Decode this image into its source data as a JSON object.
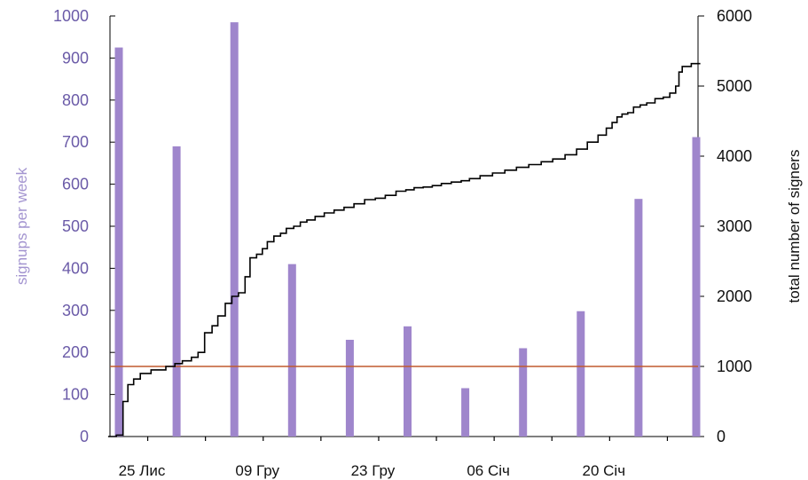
{
  "chart_data": {
    "type": "bar",
    "title": "",
    "xlabel": "",
    "ylabel": "signups per week",
    "ylabel_right": "total number of signers",
    "ylim": [
      0,
      1000
    ],
    "ylim_right": [
      0,
      6000
    ],
    "y_ticks": [
      "0",
      "100",
      "200",
      "300",
      "400",
      "500",
      "600",
      "700",
      "800",
      "900",
      "1000"
    ],
    "y_ticks_right": [
      "0",
      "1000",
      "2000",
      "3000",
      "4000",
      "5000",
      "6000"
    ],
    "x_tick_labels": [
      "25 Лис",
      "09 Гру",
      "23 Гру",
      "06 Січ",
      "20 Січ"
    ],
    "x_range_days": [
      0,
      70
    ],
    "x_tick_label_days": [
      0,
      14,
      28,
      42,
      56
    ],
    "x_minor_tick_days": [
      3.5,
      10.5,
      17.5,
      24.5,
      31.5,
      38.5,
      45.5,
      52.5,
      59.5,
      66.5
    ],
    "colors": {
      "bars": "#9f86cc",
      "cumulative": "#000000",
      "reference": "#c05a2e",
      "left_axis": "#6b5ba8"
    },
    "bars": [
      {
        "day": 0,
        "value": 925
      },
      {
        "day": 7,
        "value": 690
      },
      {
        "day": 14,
        "value": 985
      },
      {
        "day": 21,
        "value": 410
      },
      {
        "day": 28,
        "value": 230
      },
      {
        "day": 35,
        "value": 262
      },
      {
        "day": 42,
        "value": 115
      },
      {
        "day": 49,
        "value": 210
      },
      {
        "day": 56,
        "value": 298
      },
      {
        "day": 63,
        "value": 565
      },
      {
        "day": 70,
        "value": 712
      }
    ],
    "reference_line": {
      "value": 1000,
      "axis": "right"
    },
    "cumulative": {
      "axis": "right",
      "days": [
        -1.3,
        -0.3,
        0.5,
        1.1,
        1.8,
        2.6,
        3.9,
        5.7,
        6.8,
        7.7,
        8.8,
        9.6,
        10.4,
        11.3,
        12.0,
        12.9,
        13.7,
        14.5,
        15.3,
        15.9,
        16.7,
        17.4,
        18.0,
        18.8,
        19.6,
        20.3,
        21.2,
        22.0,
        22.8,
        23.8,
        24.9,
        26.1,
        27.3,
        28.5,
        29.8,
        31.1,
        32.3,
        33.6,
        34.8,
        35.8,
        36.9,
        38.0,
        39.1,
        40.3,
        41.5,
        42.5,
        43.8,
        45.3,
        46.8,
        48.2,
        49.7,
        51.2,
        52.6,
        54.1,
        55.5,
        56.8,
        58.1,
        59.1,
        59.8,
        60.4,
        61.0,
        61.7,
        62.4,
        63.2,
        64.0,
        65.0,
        66.0,
        66.8,
        67.5,
        67.9,
        68.3,
        69.4,
        70.5
      ],
      "values": [
        0,
        20,
        500,
        740,
        820,
        900,
        950,
        1000,
        1040,
        1080,
        1130,
        1200,
        1480,
        1580,
        1720,
        1900,
        2000,
        2050,
        2280,
        2550,
        2600,
        2680,
        2780,
        2860,
        2900,
        2970,
        3000,
        3060,
        3090,
        3140,
        3190,
        3230,
        3270,
        3320,
        3380,
        3400,
        3440,
        3500,
        3520,
        3550,
        3560,
        3580,
        3610,
        3630,
        3650,
        3680,
        3720,
        3760,
        3800,
        3840,
        3880,
        3920,
        3960,
        4020,
        4100,
        4200,
        4300,
        4400,
        4480,
        4560,
        4600,
        4620,
        4700,
        4730,
        4760,
        4820,
        4840,
        4900,
        5000,
        5200,
        5280,
        5320,
        5320
      ]
    }
  }
}
